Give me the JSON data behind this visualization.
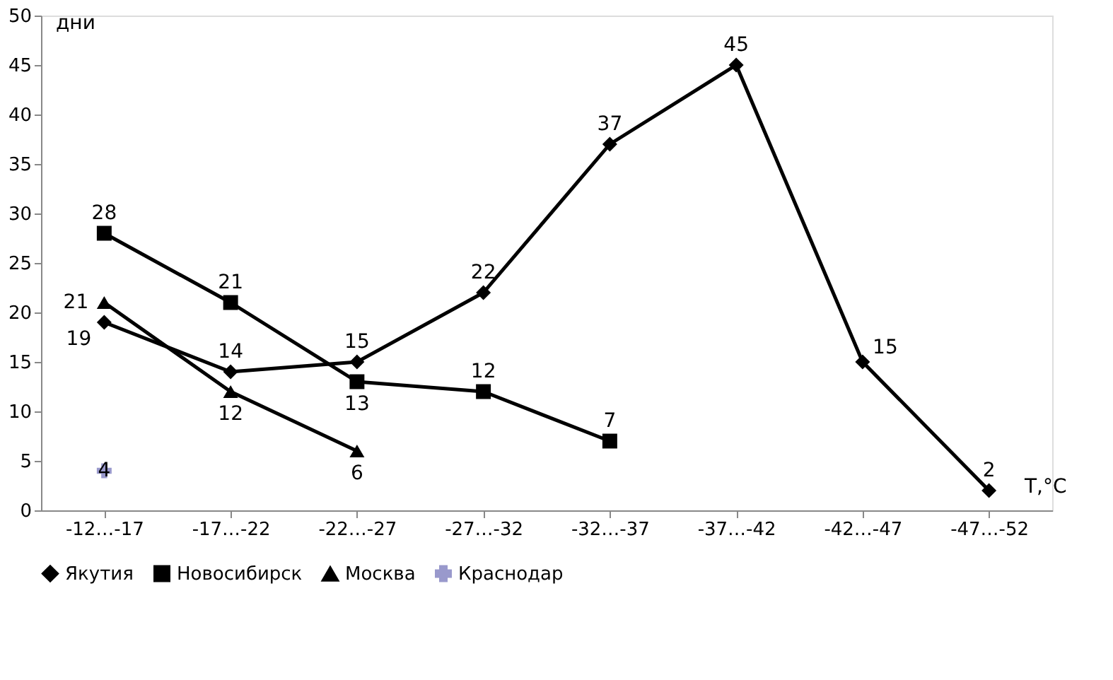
{
  "chart_data": {
    "type": "line",
    "xlabel": "T,°C",
    "ylabel": "дни",
    "categories": [
      "-12…-17",
      "-17…-22",
      "-22…-27",
      "-27…-32",
      "-32…-37",
      "-37…-42",
      "-42…-47",
      "-47…-52"
    ],
    "series": [
      {
        "name": "Якутия",
        "color": "#000000",
        "marker": "diamond",
        "values": [
          19,
          14,
          15,
          22,
          37,
          45,
          15,
          2
        ]
      },
      {
        "name": "Новосибирск",
        "color": "#000000",
        "marker": "square",
        "values": [
          28,
          21,
          13,
          12,
          7,
          null,
          null,
          null
        ]
      },
      {
        "name": "Москва",
        "color": "#000000",
        "marker": "triangle",
        "values": [
          21,
          12,
          6,
          null,
          null,
          null,
          null,
          null
        ]
      },
      {
        "name": "Краснодар",
        "color": "#9999cc",
        "marker": "cross",
        "values": [
          4,
          null,
          null,
          null,
          null,
          null,
          null,
          null
        ]
      }
    ],
    "ylim": [
      0,
      50
    ],
    "yticks": [
      0,
      5,
      10,
      15,
      20,
      25,
      30,
      35,
      40,
      45,
      50
    ],
    "grid": false,
    "legend": "bottom",
    "data_labels": true,
    "line_style": "solid"
  }
}
